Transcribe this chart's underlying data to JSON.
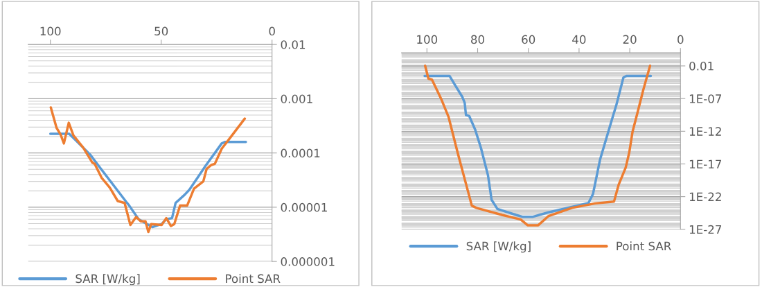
{
  "chart_data": [
    {
      "type": "line",
      "xlim": [
        110,
        0
      ],
      "xticks": [
        100,
        50,
        0
      ],
      "log": "y",
      "ylim": [
        1e-06,
        0.01
      ],
      "yticks": [
        {
          "value": 0.01,
          "label": "0.01"
        },
        {
          "value": 0.001,
          "label": "0.001"
        },
        {
          "value": 0.0001,
          "label": "0.0001"
        },
        {
          "value": 1e-05,
          "label": "0.00001"
        },
        {
          "value": 1e-06,
          "label": "0.000001"
        }
      ],
      "grid": "y",
      "legend": "bottom",
      "series": [
        {
          "name": "SAR [W/kg]",
          "color": "#5b9bd5",
          "x": [
            100,
            91.5,
            82,
            80,
            65.4,
            64.4,
            60.2,
            54,
            49.8,
            47.7,
            45.1,
            43.5,
            39.4,
            37.3,
            32.1,
            30,
            22.7,
            21.1,
            11.8
          ],
          "values": [
            0.000225,
            0.000225,
            9.3e-05,
            7.2e-05,
            1.2e-05,
            1.07e-05,
            6e-06,
            4.3e-06,
            4.9e-06,
            6e-06,
            6.3e-06,
            1.2e-05,
            1.7e-05,
            2.1e-05,
            4.3e-05,
            5.8e-05,
            0.00015,
            0.00016,
            0.00016
          ]
        },
        {
          "name": "Point SAR",
          "color": "#ed7d31",
          "x": [
            99.8,
            97.2,
            95.4,
            93.9,
            91.7,
            89.6,
            85.2,
            81,
            80,
            76.9,
            73.2,
            69.6,
            66.5,
            63.9,
            61.3,
            59.2,
            57.1,
            55.8,
            54.5,
            49.8,
            47.7,
            45.6,
            44.1,
            41.5,
            38.3,
            35.2,
            31,
            29.5,
            27.4,
            25.8,
            22.7,
            18.5,
            12.3
          ],
          "values": [
            0.00069,
            0.00029,
            0.00022,
            0.00015,
            0.00036,
            0.00021,
            0.000126,
            6.6e-05,
            6.3e-05,
            3.5e-05,
            2.3e-05,
            1.3e-05,
            1.2e-05,
            4.7e-06,
            6.6e-06,
            5.5e-06,
            5.5e-06,
            3.5e-06,
            4.9e-06,
            4.7e-06,
            6.3e-06,
            4.5e-06,
            4.9e-06,
            1.07e-05,
            1.07e-05,
            2.2e-05,
            3e-05,
            5.1e-05,
            6e-05,
            6.3e-05,
            0.00012,
            0.0002,
            0.00043
          ]
        }
      ]
    },
    {
      "type": "line",
      "xlim": [
        110,
        0
      ],
      "xticks": [
        100,
        80,
        60,
        40,
        20,
        0
      ],
      "log": "y",
      "ylim": [
        1e-27,
        1
      ],
      "yticks": [
        {
          "value": 0.01,
          "label": "0.01"
        },
        {
          "value": 1e-07,
          "label": "1E-07"
        },
        {
          "value": 1e-12,
          "label": "1E-12"
        },
        {
          "value": 1e-17,
          "label": "1E-17"
        },
        {
          "value": 1e-22,
          "label": "1E-22"
        },
        {
          "value": 1e-27,
          "label": "1E-27"
        }
      ],
      "grid": "y",
      "legend": "bottom",
      "series": [
        {
          "name": "SAR [W/kg]",
          "color": "#5b9bd5",
          "x": [
            100.9,
            91.1,
            88.8,
            86,
            85.1,
            84.6,
            83.3,
            81,
            78.7,
            75.9,
            74.5,
            72.2,
            64.9,
            62.1,
            58.4,
            52,
            36.3,
            34.5,
            31.7,
            27.1,
            25.3,
            22.5,
            21.2,
            11.7
          ],
          "values": [
            0.0003,
            0.0003,
            1e-05,
            1.7e-07,
            2.2e-08,
            3e-10,
            2.1e-10,
            1.9e-12,
            2.9e-15,
            1.7e-19,
            3.2e-23,
            1.3e-24,
            1.6e-25,
            8e-26,
            8e-26,
            4e-25,
            1e-23,
            2.5e-22,
            5e-17,
            5e-11,
            1e-08,
            0.00017,
            0.0003,
            0.0003
          ]
        },
        {
          "name": "Point SAR",
          "color": "#ed7d31",
          "x": [
            100.7,
            99.4,
            98,
            94.3,
            91.5,
            87.9,
            82.3,
            80.5,
            70.4,
            63,
            60.3,
            56.1,
            52,
            42.8,
            33.6,
            26.2,
            24.4,
            21.6,
            20.2,
            18.9,
            17,
            14.7,
            12
          ],
          "values": [
            0.01,
            0.00011,
            7.6e-05,
            7.6e-08,
            1.7e-10,
            5.6e-16,
            4.2e-24,
            1.9e-24,
            1.6e-25,
            3.2e-26,
            4.2e-27,
            4.2e-27,
            1.1e-25,
            1.9e-24,
            9.3e-24,
            1.8e-23,
            6.3e-21,
            2.8e-18,
            5.6e-16,
            8.5e-13,
            5.8e-10,
            1.9e-06,
            0.01
          ]
        }
      ]
    }
  ]
}
